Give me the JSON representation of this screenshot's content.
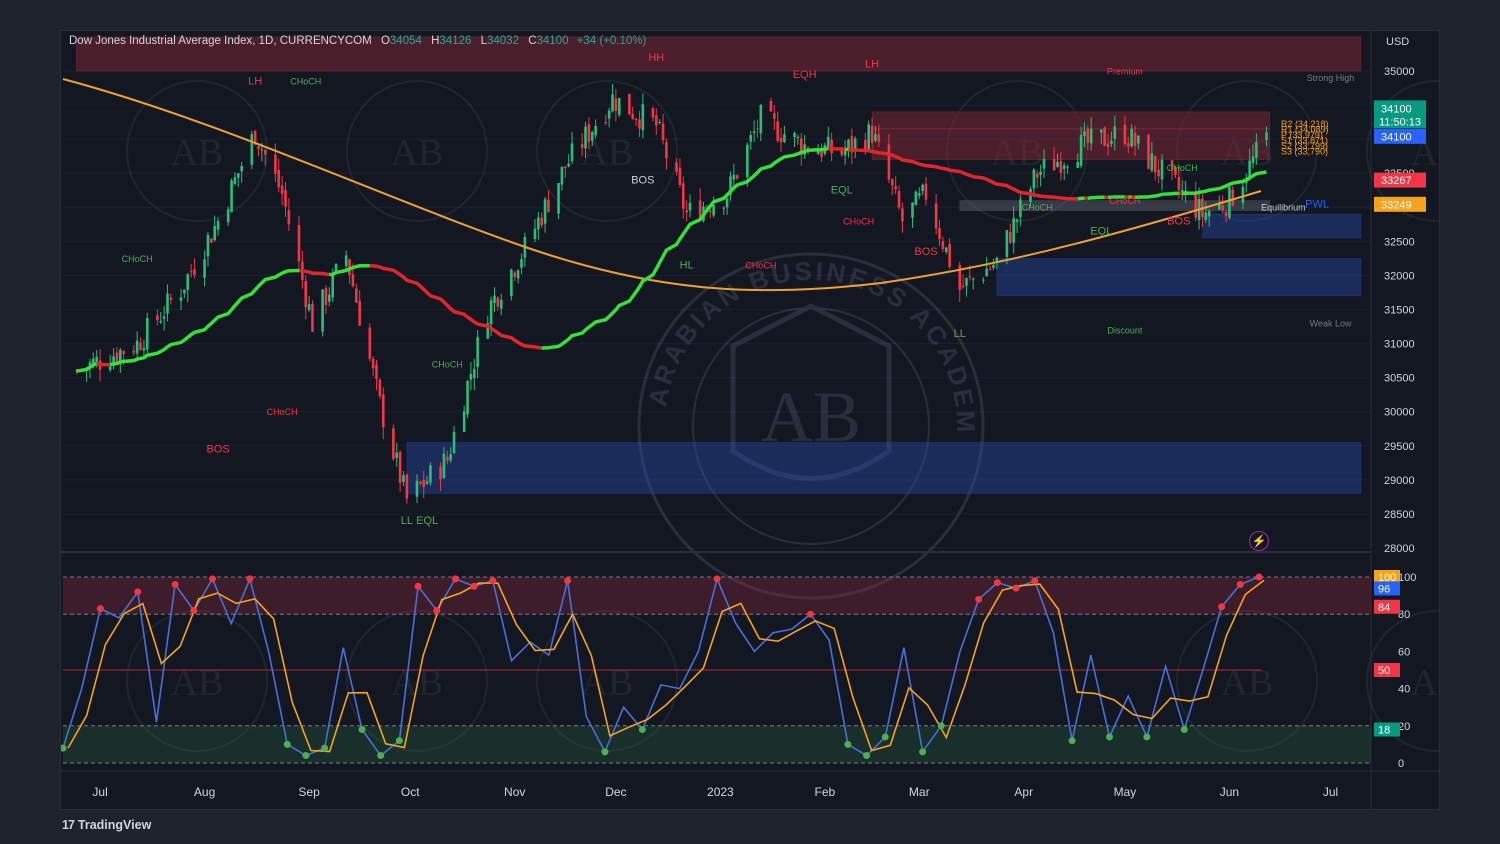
{
  "header": {
    "title": "Dow Jones Industrial Average Index, 1D, CURRENCYCOM",
    "ohlc": [
      {
        "k": "O",
        "v": "34054"
      },
      {
        "k": "H",
        "v": "34126"
      },
      {
        "k": "L",
        "v": "34032"
      },
      {
        "k": "C",
        "v": "34100"
      },
      {
        "k": "",
        "v": "+34 (+0.10%)"
      }
    ]
  },
  "brand": "TradingView",
  "watermark": "ARABIAN BUSINESS ACADEMY",
  "watermark_mark": "AB",
  "colors": {
    "bg": "#131722",
    "up": "#26a69a",
    "down": "#ef5350",
    "candle_up": "#2bbd77",
    "candle_down": "#f23645",
    "ma_red": "#e3242b",
    "ma_green": "#35e03a",
    "ma_orange": "#f0a030",
    "stoch_k": "#4a6fd8",
    "stoch_d": "#f7a21b",
    "supply": "#6b1e2a",
    "demand": "#1d3a7a",
    "smc_green": "#4caf50",
    "smc_red": "#f23645"
  },
  "chart_data": [
    {
      "type": "candlestick",
      "title": "Dow Jones Industrial Average Index, 1D, CURRENCYCOM",
      "ylabel": "USD",
      "ylim": [
        28000,
        35500
      ],
      "y_ticks": [
        "35000",
        "34500",
        "34000",
        "33500",
        "33000",
        "32500",
        "32000",
        "31500",
        "31000",
        "30500",
        "30000",
        "29500",
        "29000",
        "28500",
        "28000"
      ],
      "x_ticks": [
        "Jul",
        "Aug",
        "Sep",
        "Oct",
        "Nov",
        "Dec",
        "2023",
        "Feb",
        "Mar",
        "Apr",
        "May",
        "Jun",
        "Jul"
      ],
      "approx_close_path": [
        {
          "date": "2022-06-24",
          "y": 30600
        },
        {
          "date": "2022-07-12",
          "y": 31000
        },
        {
          "date": "2022-07-25",
          "y": 31800
        },
        {
          "date": "2022-08-05",
          "y": 32800
        },
        {
          "date": "2022-08-16",
          "y": 34100
        },
        {
          "date": "2022-08-24",
          "y": 33200
        },
        {
          "date": "2022-09-02",
          "y": 31300
        },
        {
          "date": "2022-09-12",
          "y": 32300
        },
        {
          "date": "2022-09-22",
          "y": 30100
        },
        {
          "date": "2022-09-30",
          "y": 28700
        },
        {
          "date": "2022-10-12",
          "y": 29300
        },
        {
          "date": "2022-10-24",
          "y": 31500
        },
        {
          "date": "2022-11-04",
          "y": 32400
        },
        {
          "date": "2022-11-16",
          "y": 33600
        },
        {
          "date": "2022-11-30",
          "y": 34600
        },
        {
          "date": "2022-12-13",
          "y": 34200
        },
        {
          "date": "2022-12-22",
          "y": 32900
        },
        {
          "date": "2023-01-03",
          "y": 33200
        },
        {
          "date": "2023-01-13",
          "y": 34300
        },
        {
          "date": "2023-01-26",
          "y": 33900
        },
        {
          "date": "2023-02-06",
          "y": 33800
        },
        {
          "date": "2023-02-15",
          "y": 34100
        },
        {
          "date": "2023-02-24",
          "y": 32800
        },
        {
          "date": "2023-03-03",
          "y": 33200
        },
        {
          "date": "2023-03-13",
          "y": 31800
        },
        {
          "date": "2023-03-24",
          "y": 32200
        },
        {
          "date": "2023-04-05",
          "y": 33500
        },
        {
          "date": "2023-04-18",
          "y": 33900
        },
        {
          "date": "2023-05-01",
          "y": 34100
        },
        {
          "date": "2023-05-10",
          "y": 33600
        },
        {
          "date": "2023-05-24",
          "y": 32900
        },
        {
          "date": "2023-06-01",
          "y": 33100
        },
        {
          "date": "2023-06-13",
          "y": 34100
        }
      ],
      "price_labels": [
        {
          "text": "34100",
          "sub": "11:50:13",
          "value": 34100,
          "color": "#089981"
        },
        {
          "text": "34100",
          "value": 34100,
          "color": "#2962ff"
        },
        {
          "text": "33267",
          "value": 33267,
          "color": "#f23645"
        },
        {
          "text": "33249",
          "value": 33249,
          "color": "#f7a21b"
        }
      ],
      "zones": [
        {
          "kind": "supply",
          "from": "2022-06-24",
          "to": "2023-07-10",
          "y0": 35000,
          "y1": 35500
        },
        {
          "kind": "supply",
          "from": "2023-02-15",
          "to": "2023-06-13",
          "y0": 34150,
          "y1": 34400
        },
        {
          "kind": "supply",
          "from": "2023-02-15",
          "to": "2023-06-13",
          "y0": 33700,
          "y1": 34150
        },
        {
          "kind": "demand",
          "from": "2022-09-30",
          "to": "2023-07-10",
          "y0": 28800,
          "y1": 29550
        },
        {
          "kind": "demand",
          "from": "2023-03-24",
          "to": "2023-07-10",
          "y0": 31700,
          "y1": 32250
        },
        {
          "kind": "demand",
          "from": "2023-05-24",
          "to": "2023-07-10",
          "y0": 32550,
          "y1": 32900
        },
        {
          "kind": "neutral",
          "from": "2023-03-13",
          "to": "2023-06-13",
          "y0": 32950,
          "y1": 33100
        }
      ],
      "structure_labels": [
        {
          "text": "LH",
          "date": "2022-08-16",
          "y": 34800,
          "color": "#f23645"
        },
        {
          "text": "CHoCH",
          "date": "2022-08-31",
          "y": 34800,
          "color": "#4caf50"
        },
        {
          "text": "HH",
          "date": "2022-12-13",
          "y": 35150,
          "color": "#f23645"
        },
        {
          "text": "EQH",
          "date": "2023-01-26",
          "y": 34900,
          "color": "#f23645"
        },
        {
          "text": "LH",
          "date": "2023-02-15",
          "y": 35050,
          "color": "#f23645"
        },
        {
          "text": "Premium",
          "date": "2023-05-01",
          "y": 34950,
          "color": "#f23645"
        },
        {
          "text": "Strong High",
          "date": "2023-07-01",
          "y": 34850,
          "color": "#787b86"
        },
        {
          "text": "BOS",
          "date": "2022-12-09",
          "y": 33350,
          "color": "#d1d4dc"
        },
        {
          "text": "CHoCH",
          "date": "2023-05-18",
          "y": 33530,
          "color": "#4caf50"
        },
        {
          "text": "PWL",
          "date": "2023-06-27",
          "y": 33000,
          "color": "#2962ff"
        },
        {
          "text": "EQL",
          "date": "2023-02-06",
          "y": 33200,
          "color": "#4caf50"
        },
        {
          "text": "CHoCH",
          "date": "2023-04-05",
          "y": 32950,
          "color": "#4caf50"
        },
        {
          "text": "CHoCH",
          "date": "2023-05-01",
          "y": 33050,
          "color": "#f23645"
        },
        {
          "text": "Equilibrium",
          "date": "2023-06-17",
          "y": 32950,
          "color": "#d1d4dc"
        },
        {
          "text": "CHoCH",
          "date": "2023-02-11",
          "y": 32750,
          "color": "#f23645"
        },
        {
          "text": "BOS",
          "date": "2023-05-17",
          "y": 32750,
          "color": "#f23645"
        },
        {
          "text": "EQL",
          "date": "2023-04-24",
          "y": 32600,
          "color": "#4caf50"
        },
        {
          "text": "HL",
          "date": "2022-12-22",
          "y": 32100,
          "color": "#4caf50"
        },
        {
          "text": "CHoCH",
          "date": "2023-01-13",
          "y": 32100,
          "color": "#f23645"
        },
        {
          "text": "BOS",
          "date": "2023-03-03",
          "y": 32300,
          "color": "#f23645"
        },
        {
          "text": "LL",
          "date": "2023-03-13",
          "y": 31100,
          "color": "#4caf50"
        },
        {
          "text": "Discount",
          "date": "2023-05-01",
          "y": 31150,
          "color": "#4caf50"
        },
        {
          "text": "Weak Low",
          "date": "2023-07-01",
          "y": 31250,
          "color": "#787b86"
        },
        {
          "text": "CHoCH",
          "date": "2022-07-12",
          "y": 32200,
          "color": "#4caf50"
        },
        {
          "text": "CHoCH",
          "date": "2022-10-12",
          "y": 30650,
          "color": "#4caf50"
        },
        {
          "text": "CHoCH",
          "date": "2022-08-24",
          "y": 29950,
          "color": "#f23645"
        },
        {
          "text": "BOS",
          "date": "2022-08-05",
          "y": 29400,
          "color": "#f23645"
        },
        {
          "text": "LL",
          "date": "2022-09-30",
          "y": 28350,
          "color": "#4caf50"
        },
        {
          "text": "EQL",
          "date": "2022-10-06",
          "y": 28350,
          "color": "#4caf50"
        }
      ],
      "pivot_text": [
        "R2 (34,218)",
        "R1 (34,089)",
        "P (33,979)",
        "S1 (33,871)",
        "S2 (33,799)",
        "S3 (33,790)"
      ]
    },
    {
      "type": "line",
      "title": "",
      "ylim": [
        0,
        100
      ],
      "y_ticks": [
        "100",
        "80",
        "60",
        "40",
        "20",
        "0"
      ],
      "levels": [
        80,
        50,
        20
      ],
      "badges": [
        {
          "text": "100",
          "value": 100,
          "color": "#f7a21b"
        },
        {
          "text": "96",
          "value": 96,
          "color": "#2962ff"
        },
        {
          "text": "84",
          "value": 84,
          "color": "#f23645"
        },
        {
          "text": "50",
          "value": 50,
          "color": "#f23645"
        },
        {
          "text": "18",
          "value": 18,
          "color": "#089981"
        }
      ],
      "series": [
        {
          "values": [
            8,
            40,
            83,
            78,
            92,
            22,
            96,
            82,
            99,
            75,
            99,
            60,
            10,
            4,
            8,
            62,
            18,
            4,
            12,
            95,
            82,
            99,
            95,
            98,
            55,
            65,
            58,
            98,
            25,
            6,
            30,
            18,
            42,
            40,
            60,
            99,
            75,
            60,
            70,
            72,
            80,
            66,
            10,
            4,
            14,
            62,
            6,
            20,
            60,
            88,
            97,
            94,
            98,
            70,
            12,
            58,
            14,
            36,
            14,
            52,
            18,
            50,
            84,
            96,
            100
          ]
        }
      ]
    }
  ]
}
